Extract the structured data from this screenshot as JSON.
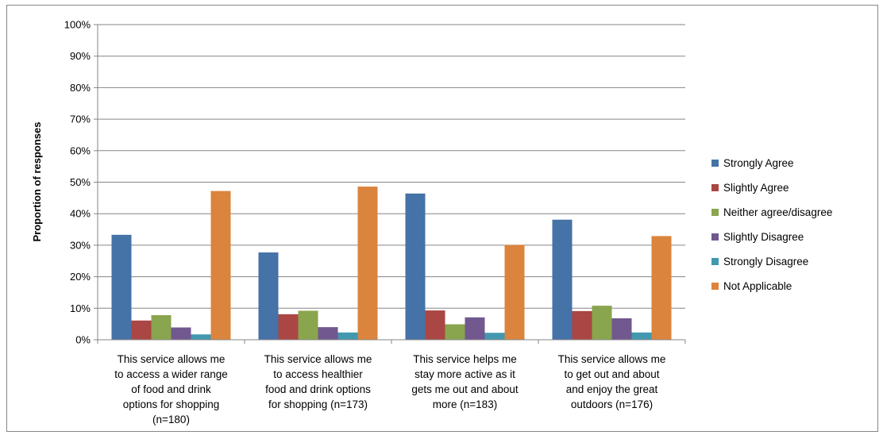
{
  "chart_data": {
    "type": "bar",
    "title": "",
    "xlabel": "",
    "ylabel": "Proportion of responses",
    "ylim": [
      0,
      100
    ],
    "y_ticks": [
      "0%",
      "10%",
      "20%",
      "30%",
      "40%",
      "50%",
      "60%",
      "70%",
      "80%",
      "90%",
      "100%"
    ],
    "grid": true,
    "legend_position": "right",
    "categories": [
      [
        "This service allows me",
        "to access a wider range",
        "of food and drink",
        "options for shopping",
        "(n=180)"
      ],
      [
        "This service allows me",
        "to access healthier",
        "food and drink options",
        "for shopping (n=173)"
      ],
      [
        "This service helps me",
        "stay more active as it",
        "gets me out and about",
        "more (n=183)"
      ],
      [
        "This service allows me",
        "to get out and about",
        "and enjoy the great",
        "outdoors (n=176)"
      ]
    ],
    "series": [
      {
        "name": "Strongly Agree",
        "color": "#4572a7",
        "values": [
          33.3,
          27.7,
          46.4,
          38.1
        ]
      },
      {
        "name": "Slightly Agree",
        "color": "#aa4643",
        "values": [
          6.1,
          8.1,
          9.3,
          9.1
        ]
      },
      {
        "name": "Neither agree/disagree",
        "color": "#89a54e",
        "values": [
          7.8,
          9.2,
          4.9,
          10.8
        ]
      },
      {
        "name": "Slightly Disagree",
        "color": "#71588f",
        "values": [
          3.9,
          4.0,
          7.1,
          6.8
        ]
      },
      {
        "name": "Strongly Disagree",
        "color": "#4198af",
        "values": [
          1.7,
          2.3,
          2.2,
          2.3
        ]
      },
      {
        "name": "Not Applicable",
        "color": "#db843d",
        "values": [
          47.2,
          48.6,
          30.1,
          32.9
        ]
      }
    ]
  }
}
